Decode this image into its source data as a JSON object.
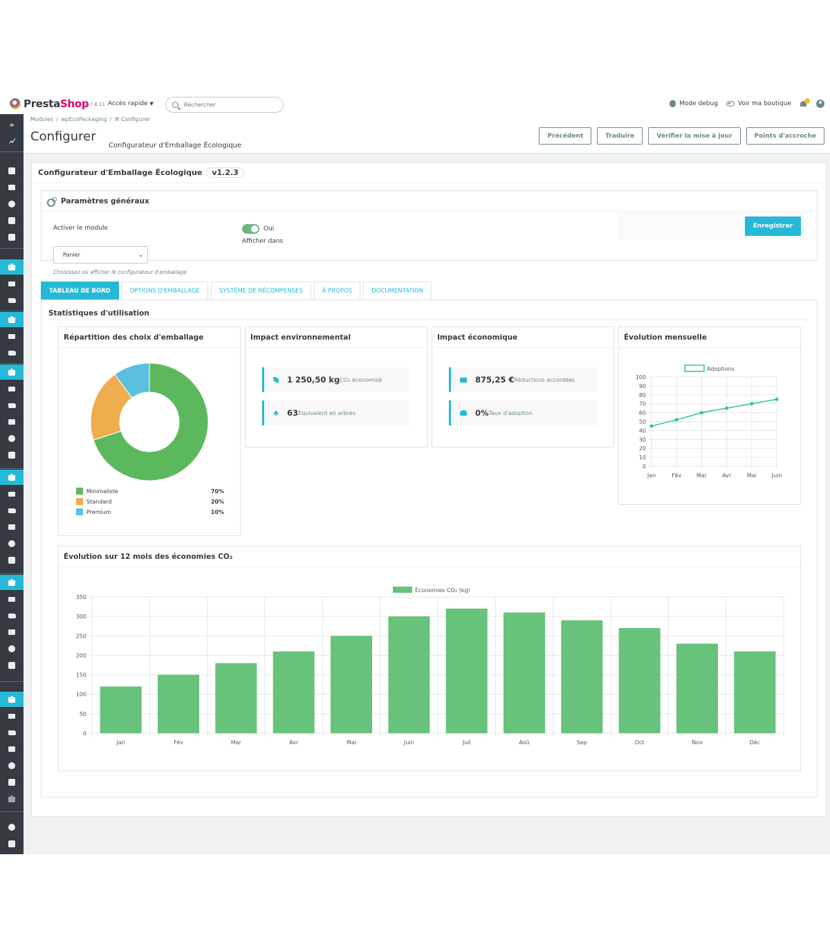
{
  "header": {
    "brand_presta": "Presta",
    "brand_shop": "Shop",
    "version": "1.7.8.11",
    "quick_access": "Accès rapide",
    "search_placeholder": "Rechercher",
    "debug_mode": "Mode debug",
    "view_shop": "Voir ma boutique"
  },
  "sidebar": {
    "expand_label": "»"
  },
  "breadcrumb": {
    "items": [
      "Modules",
      "wpEcoPackaging",
      "Configurer"
    ]
  },
  "page": {
    "title": "Configurer",
    "subtitle": "Configurateur d'Emballage Écologique",
    "buttons": [
      "Précédent",
      "Traduire",
      "Vérifier la mise à jour",
      "Points d'accroche"
    ]
  },
  "module": {
    "title": "Configurateur d'Emballage Écologique",
    "version": "v1.2.3"
  },
  "general": {
    "title": "Paramètres généraux",
    "activate_label": "Activer le module",
    "toggle_value": "Oui",
    "display_label": "Afficher dans",
    "select_value": "Panier",
    "help_text": "Choisissez où afficher le configurateur d'emballage",
    "save_label": "Enregistrer"
  },
  "tabs": [
    "TABLEAU DE BORD",
    "OPTIONS D'EMBALLAGE",
    "SYSTÈME DE RÉCOMPENSES",
    "À PROPOS",
    "DOCUMENTATION"
  ],
  "stats": {
    "title": "Statistiques d'utilisation",
    "packaging_card": {
      "title": "Répartition des choix d'emballage",
      "legend": [
        {
          "name": "Minimaliste",
          "pct": "70%"
        },
        {
          "name": "Standard",
          "pct": "20%"
        },
        {
          "name": "Premium",
          "pct": "10%"
        }
      ]
    },
    "env_card": {
      "title": "Impact environnemental",
      "co2_value": "1 250,50 kg",
      "co2_label": "CO₂ économisé",
      "trees_value": "63",
      "trees_label": "Équivalent en arbres"
    },
    "eco_card": {
      "title": "Impact économique",
      "reduc_value": "875,25 €",
      "reduc_label": "Réductions accordées",
      "adopt_value": "0%",
      "adopt_label": "Taux d'adoption"
    },
    "monthly_card": {
      "title": "Évolution mensuelle"
    },
    "yearly_card": {
      "title": "Évolution sur 12 mois des économies CO₂"
    }
  },
  "colors": {
    "primary": "#25b9d7",
    "green": "#5cb85c",
    "orange": "#f0ad4e",
    "blue": "#5bc0de",
    "bar_green": "#67c27a",
    "line_teal": "#2ac68f"
  },
  "chart_data": [
    {
      "type": "pie",
      "categories": [
        "Minimaliste",
        "Standard",
        "Premium"
      ],
      "values": [
        70,
        20,
        10
      ],
      "colors": [
        "#5cb85c",
        "#f0ad4e",
        "#5bc0de"
      ],
      "legend": "bottom"
    },
    {
      "type": "line",
      "x": [
        "Jan",
        "Fév",
        "Mar",
        "Avr",
        "Mai",
        "Juin"
      ],
      "series": [
        {
          "name": "Adoptions",
          "values": [
            45,
            52,
            60,
            65,
            70,
            75
          ]
        }
      ],
      "ylim": [
        0,
        100
      ],
      "yticks": [
        0,
        10,
        20,
        30,
        40,
        50,
        60,
        70,
        80,
        90,
        100
      ],
      "grid": true,
      "legend": "top"
    },
    {
      "type": "bar",
      "categories": [
        "Jan",
        "Fév",
        "Mar",
        "Avr",
        "Mai",
        "Juin",
        "Juil",
        "Aoû",
        "Sep",
        "Oct",
        "Nov",
        "Déc"
      ],
      "series": [
        {
          "name": "Économies CO₂ (kg)",
          "values": [
            120,
            150,
            180,
            210,
            250,
            300,
            320,
            310,
            290,
            270,
            230,
            210
          ]
        }
      ],
      "ylim": [
        0,
        350
      ],
      "yticks": [
        0,
        50,
        100,
        150,
        200,
        250,
        300,
        350
      ],
      "grid": true,
      "legend": "top"
    }
  ]
}
